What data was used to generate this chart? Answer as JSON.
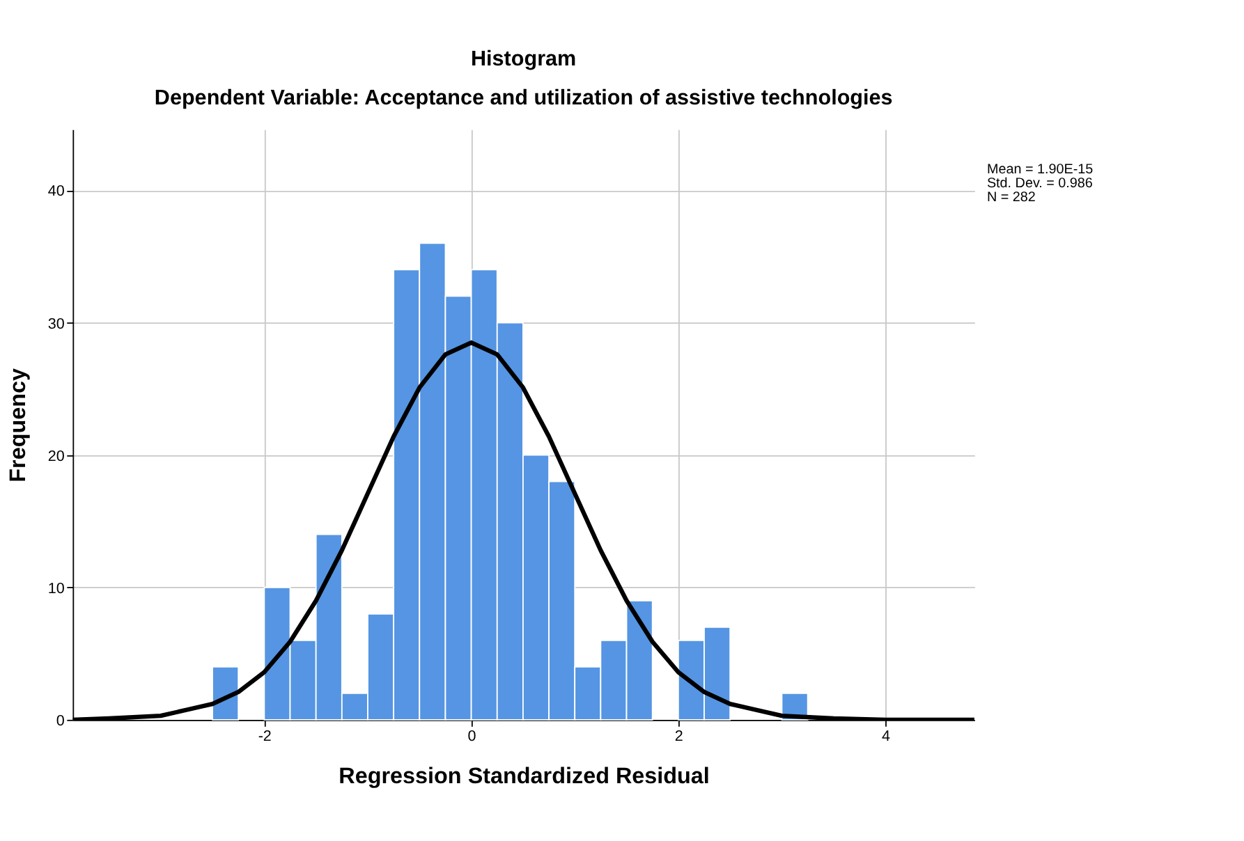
{
  "chart_data": {
    "type": "histogram",
    "title": "Histogram",
    "subtitle": "Dependent Variable: Acceptance and utilization of assistive technologies",
    "xlabel": "Regression Standardized Residual",
    "ylabel": "Frequency",
    "bins": [
      -2.5,
      -2.25,
      -2.0,
      -1.75,
      -1.5,
      -1.25,
      -1.0,
      -0.75,
      -0.5,
      -0.25,
      0.0,
      0.25,
      0.5,
      0.75,
      1.0,
      1.25,
      1.5,
      1.75,
      2.0,
      2.25,
      2.5,
      2.75,
      3.0,
      3.25
    ],
    "values": [
      4,
      0,
      10,
      6,
      14,
      2,
      8,
      34,
      36,
      32,
      34,
      30,
      20,
      18,
      4,
      6,
      9,
      0,
      6,
      7,
      0,
      0,
      2
    ],
    "color": "#5595e3",
    "series": [
      {
        "type": "line",
        "color": "#000000",
        "x": [
          -3.85,
          -3.5,
          -3.0,
          -2.5,
          -2.25,
          -2.0,
          -1.75,
          -1.5,
          -1.25,
          -1.0,
          -0.75,
          -0.5,
          -0.25,
          0.0,
          0.25,
          0.5,
          0.75,
          1.0,
          1.25,
          1.5,
          1.75,
          2.0,
          2.25,
          2.5,
          3.0,
          3.5,
          4.0,
          4.86
        ],
        "values": [
          0.0,
          0.1,
          0.3,
          1.2,
          2.1,
          3.6,
          5.9,
          9.0,
          12.8,
          17.1,
          21.4,
          25.1,
          27.6,
          28.5,
          27.6,
          25.1,
          21.4,
          17.1,
          12.8,
          9.0,
          5.9,
          3.6,
          2.1,
          1.2,
          0.3,
          0.1,
          0.0,
          0.0
        ]
      }
    ],
    "xlim": [
      -3.85,
      4.86
    ],
    "ylim": [
      0,
      44.6
    ],
    "xticks": [
      -2,
      0,
      2,
      4
    ],
    "yticks": [
      0,
      10,
      20,
      30,
      40
    ],
    "grid": true,
    "annotations": [
      "Mean = 1.90E-15",
      "Std. Dev. = 0.986",
      "N = 282"
    ]
  }
}
